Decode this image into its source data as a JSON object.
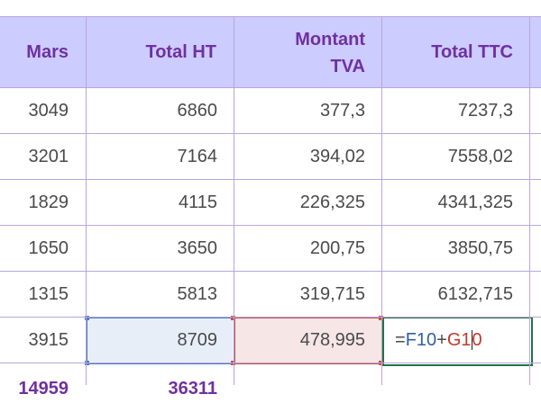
{
  "columns": [
    "Mars",
    "Total HT",
    "Montant",
    "TVA",
    "Total TTC"
  ],
  "rows": [
    [
      "3049",
      "6860",
      "377,3",
      "7237,3"
    ],
    [
      "3201",
      "7164",
      "394,02",
      "7558,02"
    ],
    [
      "1829",
      "4115",
      "226,325",
      "4341,325"
    ],
    [
      "1650",
      "3650",
      "200,75",
      "3850,75"
    ],
    [
      "1315",
      "5813",
      "319,715",
      "6132,715"
    ],
    [
      "3915",
      "8709",
      "478,995",
      ""
    ]
  ],
  "formula": {
    "eq": "=",
    "ref1": "F10",
    "op": "+",
    "ref2_a": "G1",
    "ref2_b": "0"
  },
  "totals": [
    "14959",
    "36311"
  ],
  "colors": {
    "header_bg": "#ccccff",
    "header_text": "#7030a0",
    "ref1": "#4a7ac8",
    "ref2": "#c0504d",
    "active": "#217346"
  }
}
